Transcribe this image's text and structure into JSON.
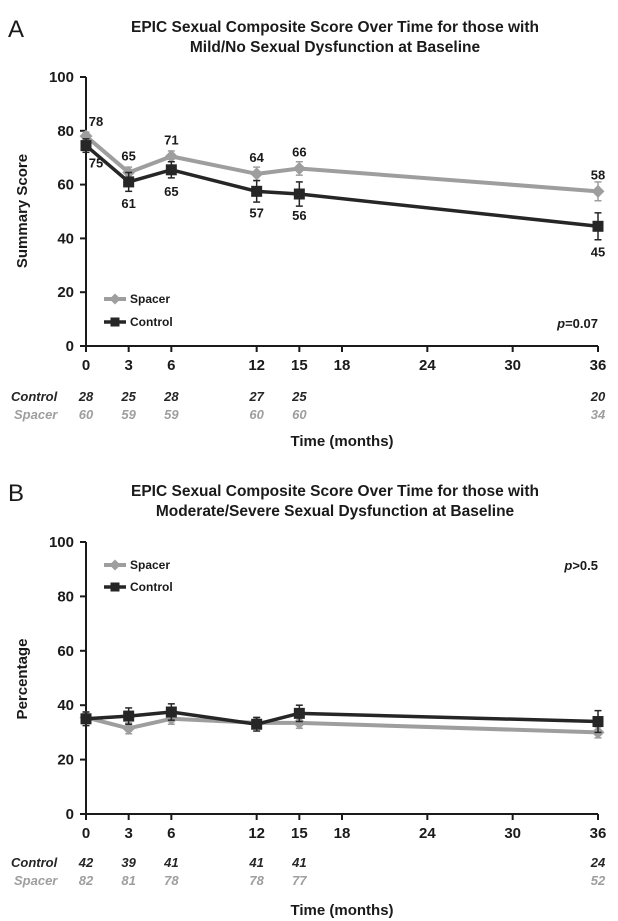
{
  "colors": {
    "spacer": "#9e9e9e",
    "control": "#262626",
    "axis": "#1a1a1a"
  },
  "chart_data": [
    {
      "panel": "A",
      "type": "line",
      "title": [
        "EPIC Sexual Composite Score Over Time for those with",
        "Mild/No Sexual Dysfunction at Baseline"
      ],
      "xlabel": "Time (months)",
      "ylabel": "Summary Score",
      "xticks": [
        0,
        3,
        6,
        12,
        15,
        18,
        24,
        30,
        36
      ],
      "yticks": [
        0,
        20,
        40,
        60,
        80,
        100
      ],
      "ylim": [
        0,
        100
      ],
      "xlim": [
        0,
        36
      ],
      "pvalue": {
        "p": "p",
        "rest": "=0.07"
      },
      "legend": [
        "Spacer",
        "Control"
      ],
      "series": [
        {
          "name": "Spacer",
          "x": [
            0,
            3,
            6,
            12,
            15,
            36
          ],
          "values": [
            78,
            64.5,
            70.5,
            64,
            66,
            57.5
          ],
          "err": [
            1.5,
            2,
            2,
            2.5,
            2.5,
            3.5
          ],
          "labels": [
            "78",
            "65",
            "71",
            "64",
            "66",
            "58"
          ]
        },
        {
          "name": "Control",
          "x": [
            0,
            3,
            6,
            12,
            15,
            36
          ],
          "values": [
            74.5,
            61,
            65.5,
            57.5,
            56.5,
            44.5
          ],
          "err": [
            2.5,
            3.5,
            3,
            4,
            4.5,
            5
          ],
          "labels": [
            "75",
            "61",
            "65",
            "57",
            "56",
            "45"
          ]
        }
      ],
      "counts": {
        "x": [
          0,
          3,
          6,
          12,
          15,
          36
        ],
        "Control": [
          "28",
          "25",
          "28",
          "27",
          "25",
          "20"
        ],
        "Spacer": [
          "60",
          "59",
          "59",
          "60",
          "60",
          "34"
        ]
      }
    },
    {
      "panel": "B",
      "type": "line",
      "title": [
        "EPIC Sexual Composite Score Over Time for those with",
        "Moderate/Severe Sexual Dysfunction at Baseline"
      ],
      "xlabel": "Time (months)",
      "ylabel": "Percentage",
      "xticks": [
        0,
        3,
        6,
        12,
        15,
        18,
        24,
        30,
        36
      ],
      "yticks": [
        0,
        20,
        40,
        60,
        80,
        100
      ],
      "ylim": [
        0,
        100
      ],
      "xlim": [
        0,
        36
      ],
      "pvalue": {
        "p": "p",
        "rest": ">0.5"
      },
      "legend": [
        "Spacer",
        "Control"
      ],
      "series": [
        {
          "name": "Spacer",
          "x": [
            0,
            3,
            6,
            12,
            15,
            36
          ],
          "values": [
            35.5,
            31.5,
            35,
            33.5,
            33.5,
            30
          ],
          "err": [
            2,
            2,
            2,
            2,
            2,
            2
          ],
          "labels": []
        },
        {
          "name": "Control",
          "x": [
            0,
            3,
            6,
            12,
            15,
            36
          ],
          "values": [
            35,
            36,
            37.5,
            33,
            37,
            34
          ],
          "err": [
            2.5,
            3,
            3,
            2.5,
            3,
            4
          ],
          "labels": []
        }
      ],
      "counts": {
        "x": [
          0,
          3,
          6,
          12,
          15,
          36
        ],
        "Control": [
          "42",
          "39",
          "41",
          "41",
          "41",
          "24"
        ],
        "Spacer": [
          "82",
          "81",
          "78",
          "78",
          "77",
          "52"
        ]
      }
    }
  ]
}
